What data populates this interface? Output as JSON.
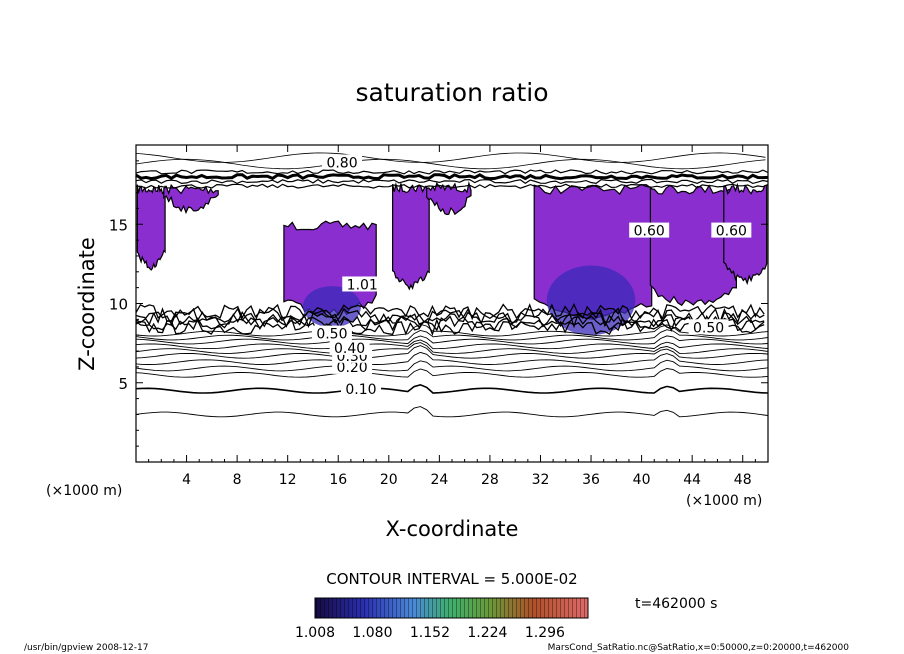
{
  "chart_data": {
    "type": "contour",
    "title": "saturation ratio",
    "xlabel": "X-coordinate",
    "ylabel": "Z-coordinate",
    "x_unit": "(×1000 m)",
    "y_unit": "(×1000 m)",
    "xlim": [
      0,
      50
    ],
    "ylim": [
      0,
      20
    ],
    "x_ticks": [
      4,
      8,
      12,
      16,
      20,
      24,
      28,
      32,
      36,
      40,
      44,
      48
    ],
    "y_ticks": [
      5,
      10,
      15
    ],
    "contour_labels": [
      {
        "text": "0.10",
        "x": 17.8,
        "z": 4.6
      },
      {
        "text": "0.20",
        "x": 17.1,
        "z": 6.0
      },
      {
        "text": "0.30",
        "x": 17.1,
        "z": 6.7
      },
      {
        "text": "0.40",
        "x": 16.9,
        "z": 7.2
      },
      {
        "text": "0.50",
        "x": 15.5,
        "z": 8.1
      },
      {
        "text": "0.50",
        "x": 45.3,
        "z": 8.5
      },
      {
        "text": "0.60",
        "x": 47.1,
        "z": 14.6
      },
      {
        "text": "0.60",
        "x": 40.6,
        "z": 14.6
      },
      {
        "text": "1.01",
        "x": 17.9,
        "z": 11.2
      },
      {
        "text": "0.80",
        "x": 16.3,
        "z": 18.9
      }
    ],
    "contour_interval_label": "CONTOUR INTERVAL = 5.000E-02",
    "colorbar": {
      "ticks": [
        "1.008",
        "1.080",
        "1.152",
        "1.224",
        "1.296"
      ],
      "range": [
        1.008,
        1.35
      ]
    },
    "time_label": "t=462000 s"
  },
  "footer": {
    "left": "/usr/bin/gpview   2008-12-17",
    "right": "MarsCond_SatRatio.nc@SatRatio,x=0:50000,z=0:20000,t=462000"
  },
  "colors": {
    "supersat_fill": "#8b2ecf",
    "core_fill": "#3a2bb8",
    "line": "#000000"
  }
}
